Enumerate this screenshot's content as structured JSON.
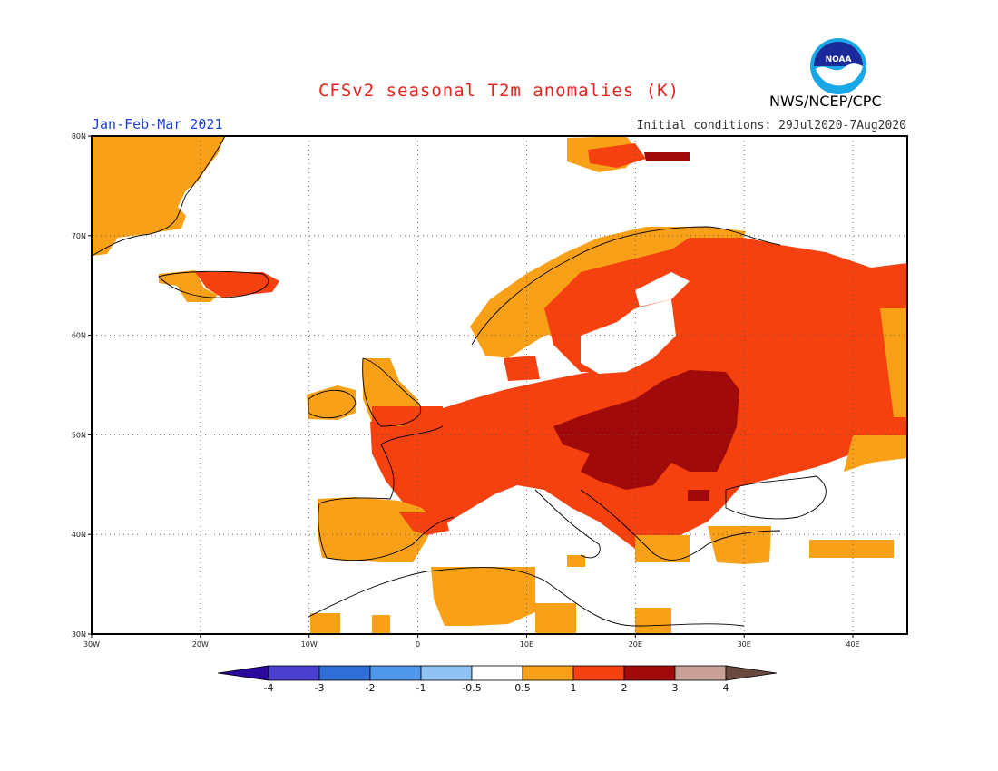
{
  "header": {
    "title": "CFSv2 seasonal T2m anomalies (K)",
    "season": "Jan-Feb-Mar 2021",
    "initial_conditions": "Initial conditions: 29Jul2020-7Aug2020",
    "agency": "NWS/NCEP/CPC",
    "logo_text": "NOAA"
  },
  "map": {
    "projection": "lat-lon",
    "lon_range": [
      -30,
      45
    ],
    "lat_range": [
      30,
      80
    ],
    "grid": true,
    "lon_ticks": [
      {
        "value": -30,
        "label": "30W"
      },
      {
        "value": -20,
        "label": "20W"
      },
      {
        "value": -10,
        "label": "10W"
      },
      {
        "value": 0,
        "label": "0"
      },
      {
        "value": 10,
        "label": "10E"
      },
      {
        "value": 20,
        "label": "20E"
      },
      {
        "value": 30,
        "label": "30E"
      },
      {
        "value": 40,
        "label": "40E"
      }
    ],
    "lat_ticks": [
      {
        "value": 80,
        "label": "80N"
      },
      {
        "value": 70,
        "label": "70N"
      },
      {
        "value": 60,
        "label": "60N"
      },
      {
        "value": 50,
        "label": "50N"
      },
      {
        "value": 40,
        "label": "40N"
      },
      {
        "value": 30,
        "label": "30N"
      }
    ]
  },
  "colorbar": {
    "labels": [
      "-4",
      "-3",
      "-2",
      "-1",
      "-0.5",
      "0.5",
      "1",
      "2",
      "3",
      "4"
    ],
    "colors": [
      "#2a0a9c",
      "#4b3fd0",
      "#2f6ed6",
      "#4f97ea",
      "#8fc2f4",
      "#ffffff",
      "#f8a018",
      "#f5400f",
      "#a10a0a",
      "#c8a095",
      "#6a4a3f"
    ]
  },
  "anomaly_classes": {
    "orange": "#f8a018",
    "red": "#f5400f",
    "darkred": "#a10a0a"
  }
}
